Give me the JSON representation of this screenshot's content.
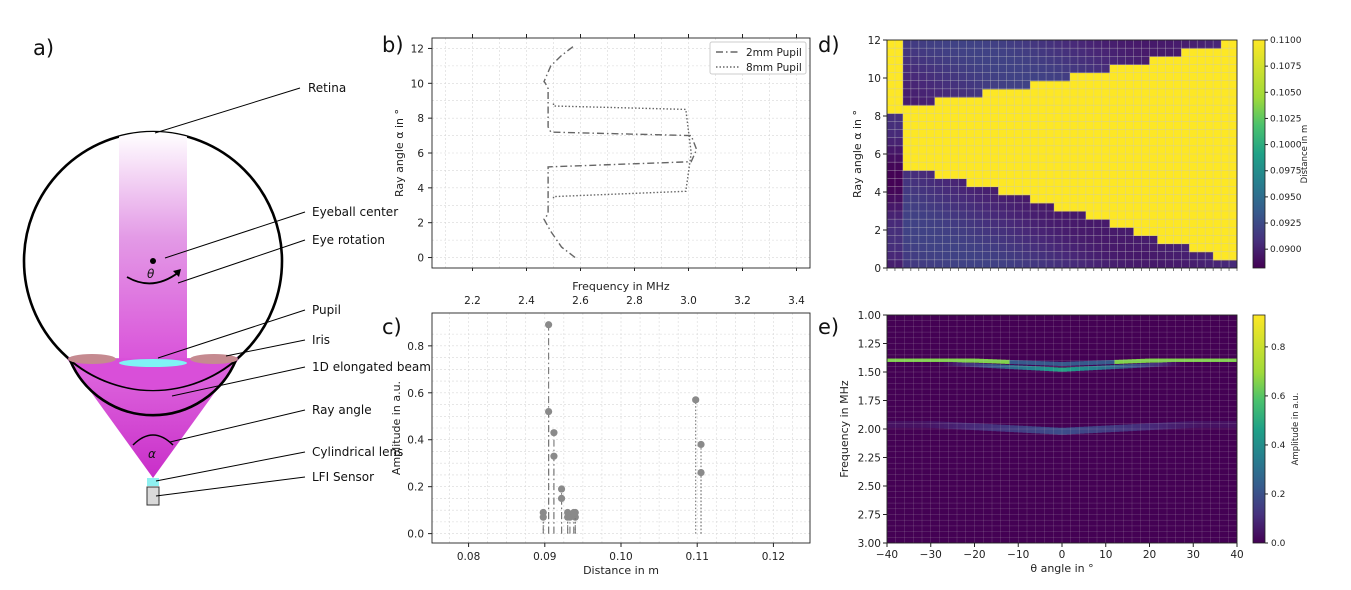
{
  "panels": {
    "a": {
      "label": "a)",
      "annotations": [
        "Retina",
        "Eyeball center",
        "Eye rotation",
        "Pupil",
        "Iris",
        "1D elongated beam",
        "Ray angle",
        "Cylindrical lens",
        "LFI Sensor"
      ],
      "theta_symbol": "θ",
      "alpha_symbol": "α",
      "colors": {
        "beam": "#d94fd9",
        "pupil": "#7ff3f5",
        "iris": "#c09090",
        "lens": "#8ef0f0",
        "sensor": "#d9d9d9"
      }
    },
    "b": {
      "label": "b)"
    },
    "c": {
      "label": "c)"
    },
    "d": {
      "label": "d)"
    },
    "e": {
      "label": "e)"
    }
  },
  "chart_data": [
    {
      "id": "b",
      "type": "line",
      "xlabel": "Frequency in MHz",
      "ylabel": "Ray angle α in °",
      "xlim": [
        2.05,
        3.45
      ],
      "ylim": [
        -0.6,
        12.6
      ],
      "xticks": [
        "2.2",
        "2.4",
        "2.6",
        "2.8",
        "3.0",
        "3.2",
        "3.4"
      ],
      "yticks": [
        "0",
        "2",
        "4",
        "6",
        "8",
        "10",
        "12"
      ],
      "xaxis_position": "top",
      "grid": true,
      "legend_position": "top-right",
      "series": [
        {
          "name": "2mm Pupil",
          "style": "dashdot",
          "x": [
            2.58,
            2.53,
            2.49,
            2.465,
            2.47,
            2.48,
            2.48,
            3.01,
            3.03,
            3.01,
            2.49,
            2.48,
            2.48,
            2.47,
            2.465,
            2.49,
            2.53,
            2.58
          ],
          "y": [
            0,
            0.6,
            1.5,
            2.2,
            2.3,
            2.5,
            5.2,
            5.5,
            6.2,
            7.0,
            7.2,
            7.5,
            9.7,
            10.0,
            10.1,
            11.0,
            11.6,
            12.2
          ]
        },
        {
          "name": "8mm Pupil",
          "style": "dotted",
          "x": [
            2.5,
            2.5,
            2.99,
            3.01,
            2.99,
            2.5,
            2.5
          ],
          "y": [
            3.4,
            3.5,
            3.8,
            6.0,
            8.5,
            8.7,
            8.9
          ]
        }
      ]
    },
    {
      "id": "c",
      "type": "scatter",
      "xlabel": "Distance in m",
      "ylabel": "Amplitude in a.u.",
      "xlim": [
        0.0752,
        0.1248
      ],
      "ylim": [
        -0.04,
        0.94
      ],
      "xticks": [
        "0.08",
        "0.09",
        "0.10",
        "0.11",
        "0.12"
      ],
      "yticks": [
        "0.0",
        "0.2",
        "0.4",
        "0.6",
        "0.8"
      ],
      "grid": true,
      "series": [
        {
          "name": "2mm Pupil",
          "style": "dashdot",
          "x": [
            0.0898,
            0.0905,
            0.0905,
            0.0912,
            0.0912,
            0.0922,
            0.0922,
            0.093,
            0.0933,
            0.0938,
            0.094
          ],
          "y": [
            0.09,
            0.89,
            0.52,
            0.43,
            0.33,
            0.19,
            0.15,
            0.09,
            0.07,
            0.09,
            0.07
          ]
        },
        {
          "name": "8mm Pupil",
          "style": "dotted",
          "x": [
            0.1098,
            0.1105,
            0.1105,
            0.0898,
            0.093,
            0.094
          ],
          "y": [
            0.57,
            0.38,
            0.26,
            0.07,
            0.07,
            0.09
          ]
        }
      ]
    },
    {
      "id": "d",
      "type": "heatmap",
      "ylabel": "Ray angle α in °",
      "ylim": [
        0,
        12
      ],
      "yticks": [
        "0",
        "2",
        "4",
        "6",
        "8",
        "10",
        "12"
      ],
      "colorbar": {
        "label": "Distance in m",
        "range": [
          0.0882,
          0.11
        ],
        "ticks": [
          "0.0900",
          "0.0925",
          "0.0950",
          "0.0975",
          "0.1000",
          "0.1025",
          "0.1050",
          "0.1075",
          "0.1100"
        ]
      },
      "band": {
        "value_in": 0.11,
        "upper_edge_y": [
          8.5,
          12.0
        ],
        "lower_edge_y": [
          5.5,
          0.2
        ]
      }
    },
    {
      "id": "e",
      "type": "heatmap",
      "xlabel": "θ angle in °",
      "ylabel": "Frequency in MHz",
      "xlim": [
        -40,
        40
      ],
      "ylim": [
        3.0,
        1.0
      ],
      "xticks": [
        "−40",
        "−30",
        "−20",
        "−10",
        "0",
        "10",
        "20",
        "30",
        "40"
      ],
      "yticks": [
        "1.00",
        "1.25",
        "1.50",
        "1.75",
        "2.00",
        "2.25",
        "2.50",
        "2.75",
        "3.00"
      ],
      "colorbar": {
        "label": "Amplitude in a.u.",
        "range": [
          0,
          0.93
        ],
        "ticks": [
          "0.0",
          "0.2",
          "0.4",
          "0.6",
          "0.8"
        ]
      },
      "bands": [
        {
          "freq": 1.4,
          "amplitude": 0.75
        },
        {
          "freq": 1.48,
          "amplitude": 0.55
        },
        {
          "freq": 2.02,
          "amplitude": 0.22
        }
      ]
    }
  ]
}
